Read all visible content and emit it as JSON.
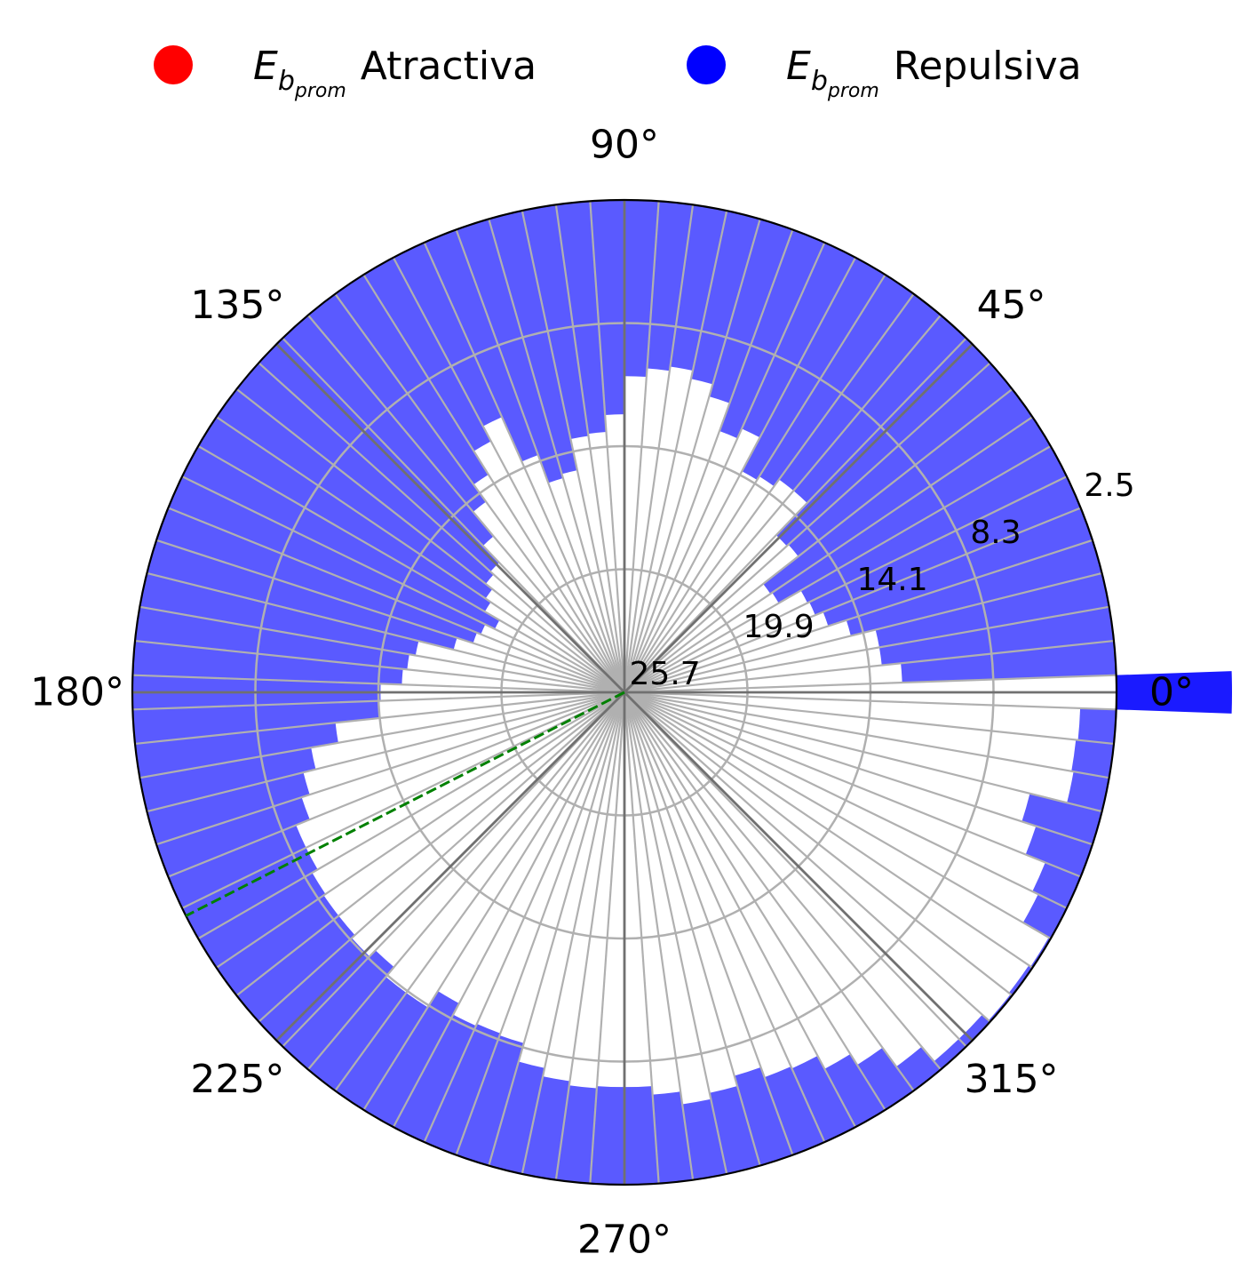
{
  "chart_data": {
    "type": "polar-bar",
    "legend": [
      {
        "symbol": "E",
        "subscript": "b",
        "subsub": "prom",
        "label": "Atractiva",
        "color": "#ff0000"
      },
      {
        "symbol": "E",
        "subscript": "b",
        "subsub": "prom",
        "label": "Repulsiva",
        "color": "#0000ff"
      }
    ],
    "legend_position": "top",
    "angle_ticks": [
      {
        "deg": 0,
        "label": "0°"
      },
      {
        "deg": 45,
        "label": "45°"
      },
      {
        "deg": 90,
        "label": "90°"
      },
      {
        "deg": 135,
        "label": "135°"
      },
      {
        "deg": 180,
        "label": "180°"
      },
      {
        "deg": 225,
        "label": "225°"
      },
      {
        "deg": 270,
        "label": "270°"
      },
      {
        "deg": 315,
        "label": "315°"
      }
    ],
    "radial_axis": {
      "inverted": true,
      "center_value": 25.7,
      "edge_value": 2.5,
      "ticks": [
        2.5,
        8.3,
        14.1,
        19.9,
        25.7
      ],
      "tick_labels": [
        "2.5",
        "8.3",
        "14.1",
        "19.9",
        "25.7"
      ],
      "label_angle_deg": 22.5
    },
    "grid": true,
    "bin_width_deg": 4,
    "bins_start_deg": -2,
    "bar_color": "#5a5aff",
    "highlight_bar_color": "#1a1aff",
    "highlight_bin_center_deg": 0,
    "reference_line": {
      "angle_deg": 207,
      "color": "#008000",
      "style": "dashed"
    },
    "values": [
      2.5,
      12.6,
      13.5,
      13.5,
      14.7,
      15.6,
      16.0,
      16.1,
      17.3,
      17.4,
      15.3,
      15.4,
      13.3,
      13.3,
      13.7,
      13.9,
      12.1,
      12.6,
      11.2,
      10.6,
      10.2,
      10.4,
      10.8,
      12.6,
      13.4,
      13.5,
      15.0,
      15.2,
      13.8,
      11.5,
      12.3,
      13.6,
      14.6,
      16.1,
      17.2,
      17.4,
      17.8,
      18.1,
      18.9,
      18.4,
      18.2,
      17.4,
      15.7,
      15.4,
      15.2,
      14.2,
      14.1,
      12.0,
      10.7,
      10.1,
      9.7,
      9.0,
      9.0,
      8.7,
      8.6,
      8.6,
      8.4,
      8.8,
      8.2,
      8.2,
      9.1,
      8.5,
      8.6,
      8.5,
      7.6,
      7.2,
      7.0,
      7.1,
      7.1,
      6.7,
      6.1,
      6.4,
      6.9,
      6.4,
      6.3,
      5.6,
      5.0,
      3.9,
      3.0,
      3.0,
      2.6,
      2.7,
      2.6,
      4.0,
      4.3,
      5.3,
      6.0,
      4.2,
      4.3,
      4.2
    ]
  }
}
